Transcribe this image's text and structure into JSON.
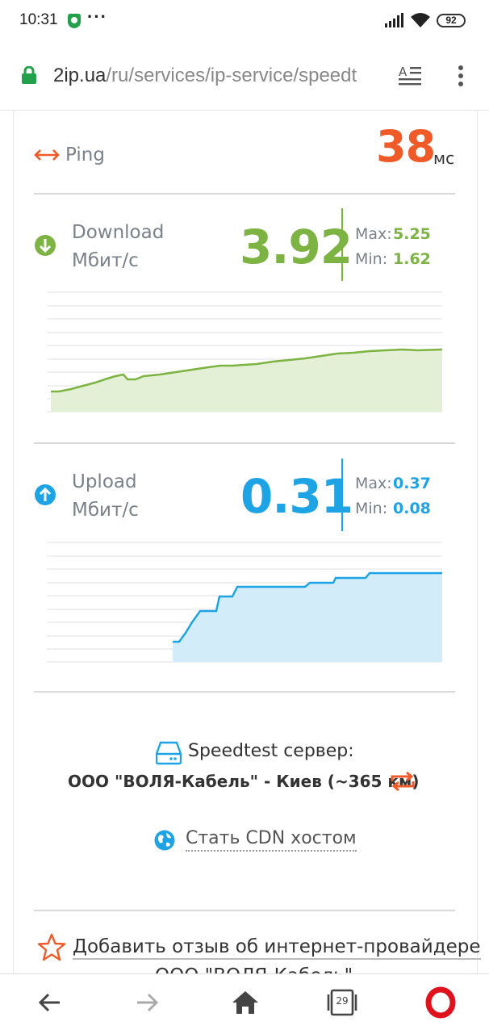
{
  "status_bar": {
    "time": "10:31",
    "battery": "92"
  },
  "address_bar": {
    "host": "2ip.ua",
    "path": "/ru/services/ip-service/speedt"
  },
  "ping": {
    "label": "Ping",
    "value": "38",
    "unit": "мс"
  },
  "download": {
    "label": "Download",
    "unit": "Мбит/с",
    "value": "3.92",
    "max_label": "Max:",
    "max": "5.25",
    "min_label": "Min:",
    "min": "1.62",
    "color": "#7cb342"
  },
  "upload": {
    "label": "Upload",
    "unit": "Мбит/с",
    "value": "0.31",
    "max_label": "Max:",
    "max": "0.37",
    "min_label": "Min:",
    "min": "0.08",
    "color": "#1ea4e4"
  },
  "server": {
    "title": "Speedtest сервер:",
    "name": "ООО \"ВОЛЯ-Кабель\" - Киев (~365 км)"
  },
  "cdn": {
    "link": "Стать CDN хостом"
  },
  "review": {
    "link": "Добавить отзыв об интернет-провайдере",
    "partial": "ООО \"ВОЛЯ-Кабель\""
  },
  "nav": {
    "tabs_count": "29"
  },
  "colors": {
    "ping": "#f05a28",
    "download": "#7cb342",
    "upload": "#1ea4e4"
  }
}
